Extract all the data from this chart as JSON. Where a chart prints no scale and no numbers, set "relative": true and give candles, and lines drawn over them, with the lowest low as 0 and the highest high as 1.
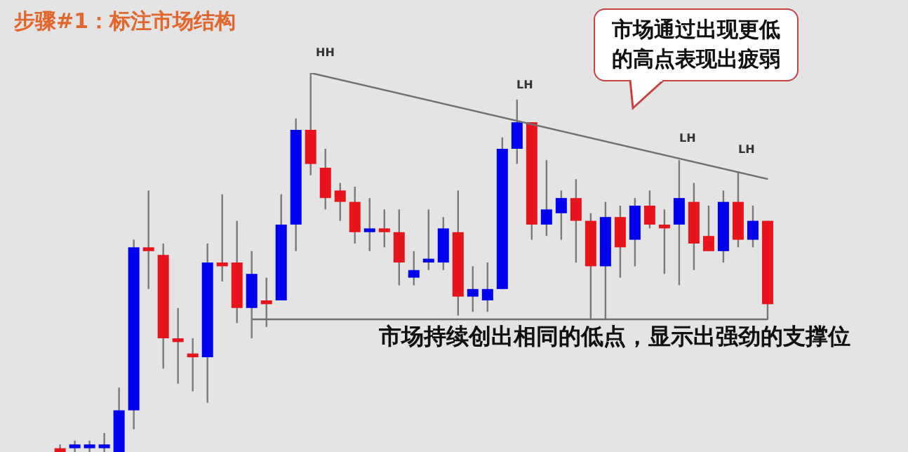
{
  "chart_data": {
    "type": "candlestick",
    "title": "步骤#1：标注市场结构",
    "relative": true,
    "tick_labels": false,
    "categories": [
      null,
      null,
      null,
      null,
      null,
      null,
      null,
      null,
      null,
      null,
      null,
      null,
      null,
      null,
      null,
      null,
      null,
      null,
      null,
      null,
      null,
      null,
      null,
      null,
      null,
      null,
      null,
      null,
      null,
      null,
      null,
      null,
      null,
      null,
      null,
      null,
      null,
      null,
      null,
      null,
      null,
      null,
      null,
      null,
      null,
      null,
      null,
      null,
      null
    ],
    "ohlc": [
      [
        0.01,
        0.02,
        0,
        0
      ],
      [
        0.01,
        0.03,
        0,
        0.02
      ],
      [
        0.01,
        0.03,
        0,
        0.02
      ],
      [
        0.01,
        0.05,
        0,
        0.02
      ],
      [
        0,
        0.17,
        0,
        0.11
      ],
      [
        0.11,
        0.56,
        0.06,
        0.54
      ],
      [
        0.54,
        0.69,
        0.43,
        0.53
      ],
      [
        0.52,
        0.55,
        0.22,
        0.3
      ],
      [
        0.3,
        0.38,
        0.18,
        0.29
      ],
      [
        0.26,
        0.3,
        0.16,
        0.25
      ],
      [
        0.25,
        0.55,
        0.13,
        0.5
      ],
      [
        0.5,
        0.68,
        0.45,
        0.49
      ],
      [
        0.5,
        0.61,
        0.34,
        0.38
      ],
      [
        0.38,
        0.53,
        0.3,
        0.47
      ],
      [
        0.4,
        0.46,
        0.33,
        0.39
      ],
      [
        0.4,
        0.68,
        0.4,
        0.6
      ],
      [
        0.6,
        0.88,
        0.53,
        0.85
      ],
      [
        0.85,
        1,
        0.73,
        0.76
      ],
      [
        0.75,
        0.8,
        0.64,
        0.67
      ],
      [
        0.69,
        0.71,
        0.61,
        0.66
      ],
      [
        0.66,
        0.7,
        0.55,
        0.58
      ],
      [
        0.58,
        0.67,
        0.53,
        0.59
      ],
      [
        0.59,
        0.64,
        0.54,
        0.58
      ],
      [
        0.58,
        0.64,
        0.44,
        0.5
      ],
      [
        0.46,
        0.53,
        0.44,
        0.48
      ],
      [
        0.5,
        0.64,
        0.48,
        0.51
      ],
      [
        0.5,
        0.62,
        0.48,
        0.59
      ],
      [
        0.58,
        0.69,
        0.36,
        0.41
      ],
      [
        0.41,
        0.49,
        0.37,
        0.43
      ],
      [
        0.4,
        0.5,
        0.37,
        0.43
      ],
      [
        0.43,
        0.83,
        0.43,
        0.8
      ],
      [
        0.8,
        0.93,
        0.76,
        0.87
      ],
      [
        0.87,
        0.87,
        0.56,
        0.6
      ],
      [
        0.6,
        0.77,
        0.57,
        0.64
      ],
      [
        0.63,
        0.69,
        0.56,
        0.67
      ],
      [
        0.67,
        0.72,
        0.5,
        0.61
      ],
      [
        0.61,
        0.63,
        0.35,
        0.49
      ],
      [
        0.49,
        0.66,
        0.35,
        0.62
      ],
      [
        0.62,
        0.65,
        0.46,
        0.54
      ],
      [
        0.56,
        0.67,
        0.49,
        0.65
      ],
      [
        0.65,
        0.69,
        0.59,
        0.6
      ],
      [
        0.6,
        0.64,
        0.47,
        0.59
      ],
      [
        0.6,
        0.77,
        0.44,
        0.67
      ],
      [
        0.66,
        0.71,
        0.48,
        0.55
      ],
      [
        0.57,
        0.65,
        0.53,
        0.53
      ],
      [
        0.53,
        0.69,
        0.5,
        0.66
      ],
      [
        0.66,
        0.74,
        0.54,
        0.56
      ],
      [
        0.56,
        0.65,
        0.54,
        0.61
      ],
      [
        0.61,
        0.61,
        0.35,
        0.39
      ]
    ],
    "colors": [
      "#e8141c",
      "#0000f0",
      "#0000f0",
      "#0000f0",
      "#0000f0",
      "#0000f0",
      "#e8141c",
      "#e8141c",
      "#e8141c",
      "#e8141c",
      "#0000f0",
      "#e8141c",
      "#e8141c",
      "#0000f0",
      "#e8141c",
      "#0000f0",
      "#0000f0",
      "#e8141c",
      "#e8141c",
      "#e8141c",
      "#e8141c",
      "#0000f0",
      "#e8141c",
      "#e8141c",
      "#0000f0",
      "#0000f0",
      "#0000f0",
      "#e8141c",
      "#0000f0",
      "#0000f0",
      "#0000f0",
      "#0000f0",
      "#e8141c",
      "#0000f0",
      "#0000f0",
      "#e8141c",
      "#e8141c",
      "#0000f0",
      "#e8141c",
      "#0000f0",
      "#e8141c",
      "#e8141c",
      "#0000f0",
      "#e8141c",
      "#e8141c",
      "#0000f0",
      "#e8141c",
      "#0000f0",
      "#e8141c"
    ],
    "series": [
      {
        "type": "line",
        "color": "#707070",
        "values": [
          null,
          null,
          null,
          null,
          null,
          null,
          null,
          null,
          null,
          null,
          null,
          null,
          null,
          null,
          null,
          null,
          null,
          1,
          null,
          null,
          null,
          null,
          null,
          null,
          null,
          null,
          null,
          null,
          null,
          null,
          null,
          null,
          null,
          null,
          null,
          null,
          null,
          null,
          null,
          null,
          null,
          null,
          null,
          null,
          null,
          null,
          null,
          null,
          0.72
        ]
      },
      {
        "type": "line",
        "color": "#707070",
        "values": [
          null,
          null,
          null,
          null,
          null,
          null,
          null,
          null,
          null,
          null,
          null,
          null,
          null,
          0.35,
          null,
          null,
          null,
          null,
          null,
          null,
          null,
          null,
          null,
          null,
          null,
          null,
          null,
          null,
          null,
          null,
          null,
          null,
          null,
          null,
          null,
          null,
          null,
          null,
          null,
          null,
          null,
          null,
          null,
          null,
          null,
          null,
          null,
          null,
          0.35
        ]
      }
    ],
    "annotations": [
      "HH",
      "LH",
      "LH",
      "LH",
      "市场通过出现更低的高点表现出疲弱",
      "市场持续创出相同的低点，显示出强劲的支撑位"
    ]
  }
}
